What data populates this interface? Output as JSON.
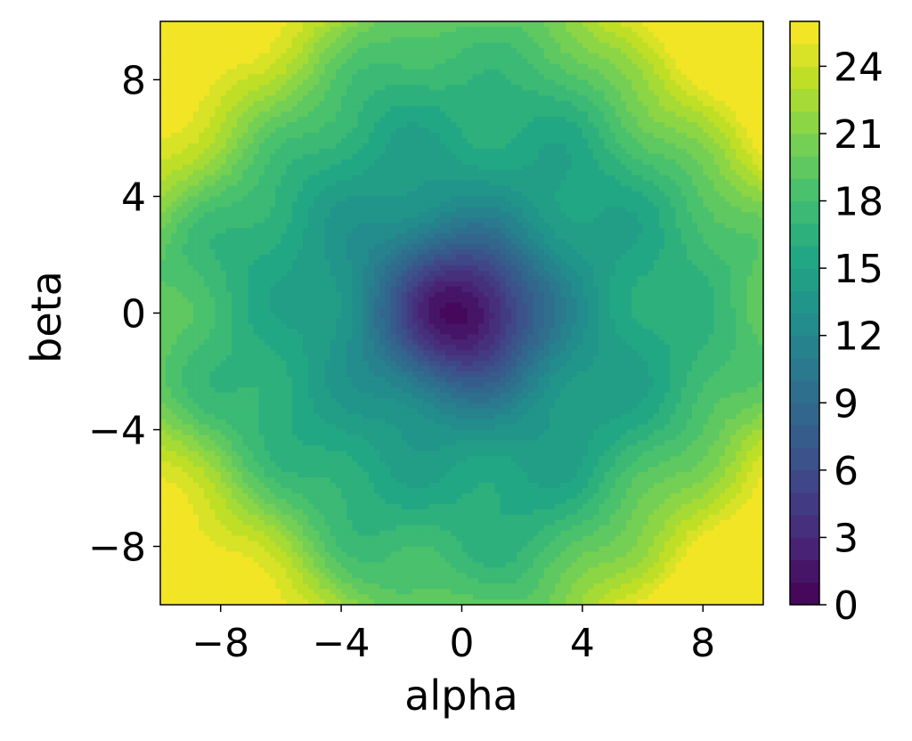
{
  "chart_data": {
    "type": "heatmap",
    "subtype": "filled-contour",
    "title": "",
    "xlabel": "alpha",
    "ylabel": "beta",
    "xlim": [
      -10,
      10
    ],
    "ylim": [
      -10,
      10
    ],
    "x_ticks": [
      -8,
      -4,
      0,
      4,
      8
    ],
    "y_ticks": [
      -8,
      -4,
      0,
      4,
      8
    ],
    "x_tick_labels": [
      "−8",
      "−4",
      "0",
      "4",
      "8"
    ],
    "y_tick_labels": [
      "−8",
      "−4",
      "0",
      "4",
      "8"
    ],
    "colorbar": {
      "colormap": "viridis",
      "range": [
        0,
        26
      ],
      "levels": 26,
      "ticks": [
        0,
        3,
        6,
        9,
        12,
        15,
        18,
        21,
        24
      ],
      "tick_labels": [
        "0",
        "3",
        "6",
        "9",
        "12",
        "15",
        "18",
        "21",
        "24"
      ]
    },
    "grid": false,
    "contour_lines": true,
    "description_values": {
      "minimum": {
        "x": 0,
        "y": 0,
        "z": 0
      },
      "center_plateau_z": 13,
      "corner_max_z": 25
    }
  }
}
